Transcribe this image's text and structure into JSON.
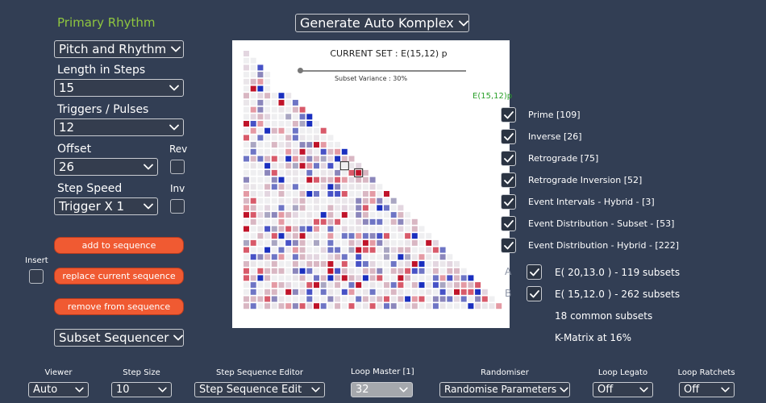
{
  "header": {
    "section_title": "Primary Rhythm",
    "generate_dropdown": "Generate Auto Komplex"
  },
  "left": {
    "mode_dropdown": "Pitch and Rhythm",
    "length_label": "Length in Steps",
    "length_value": "15",
    "triggers_label": "Triggers / Pulses",
    "triggers_value": "12",
    "offset_label": "Offset",
    "offset_value": "26",
    "rev_label": "Rev",
    "step_speed_label": "Step Speed",
    "step_speed_value": "Trigger X 1",
    "inv_label": "Inv",
    "add_button": "add to sequence",
    "insert_label": "Insert",
    "replace_button": "replace current sequence",
    "remove_button": "remove from sequence",
    "subset_dropdown": "Subset Sequencer"
  },
  "panel": {
    "current_set": "CURRENT SET : E(15,12) p",
    "variance_label": "Subset Variance : 30%",
    "variance_value": 0.3,
    "set_tag": "E(15,12)p",
    "colors": {
      "red": "#c0142a",
      "blue": "#1a2fbf",
      "tag": "#2aa02a"
    }
  },
  "subsets": [
    {
      "label": "Prime [109]",
      "checked": true
    },
    {
      "label": "Inverse [26]",
      "checked": true
    },
    {
      "label": "Retrograde [75]",
      "checked": true
    },
    {
      "label": "Retrograde Inversion [52]",
      "checked": true
    },
    {
      "label": "Event Intervals - Hybrid - [3]",
      "checked": true
    },
    {
      "label": "Event Distribution - Subset - [53]",
      "checked": true
    },
    {
      "label": "Event Distribution - Hybrid - [222]",
      "checked": true
    }
  ],
  "compare": {
    "a_letter": "A",
    "a_label": "E( 20,13.0 ) - 119 subsets",
    "b_letter": "B",
    "b_label": "E( 15,12.0 ) - 262 subsets",
    "common": "18 common subsets",
    "kmatrix": "K-Matrix at 16%"
  },
  "bottom": {
    "viewer_label": "Viewer",
    "viewer_value": "Auto",
    "stepsize_label": "Step Size",
    "stepsize_value": "10",
    "editor_label": "Step Sequence Editor",
    "editor_value": "Step Sequence Edit",
    "loopmaster_label": "Loop Master [1]",
    "loopmaster_value": "32",
    "randomiser_label": "Randomiser",
    "randomiser_value": "Randomise Parameters",
    "legato_label": "Loop Legato",
    "legato_value": "Off",
    "ratchets_label": "Loop Ratchets",
    "ratchets_value": "Off"
  }
}
